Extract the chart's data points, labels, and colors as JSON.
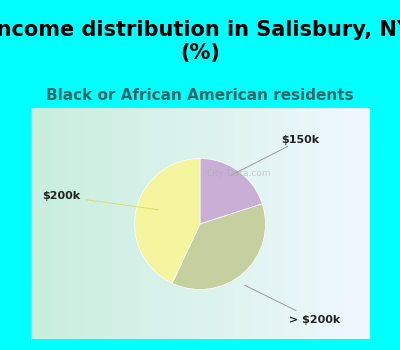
{
  "title": "Income distribution in Salisbury, NY\n(%)",
  "subtitle": "Black or African American residents",
  "slices": [
    {
      "label": "$150k",
      "value": 20,
      "color": "#c9aed6"
    },
    {
      "label": "> $200k",
      "value": 37,
      "color": "#c5cfa0"
    },
    {
      "label": "$200k",
      "value": 43,
      "color": "#f5f5a0"
    }
  ],
  "title_fontsize": 15,
  "subtitle_fontsize": 11,
  "title_color": "#000000",
  "subtitle_color": "#336666",
  "bg_color": "#00ffff",
  "chart_bg_left": "#c8eedd",
  "chart_bg_right": "#f0f8ff",
  "startangle": 90,
  "counterclock": false
}
